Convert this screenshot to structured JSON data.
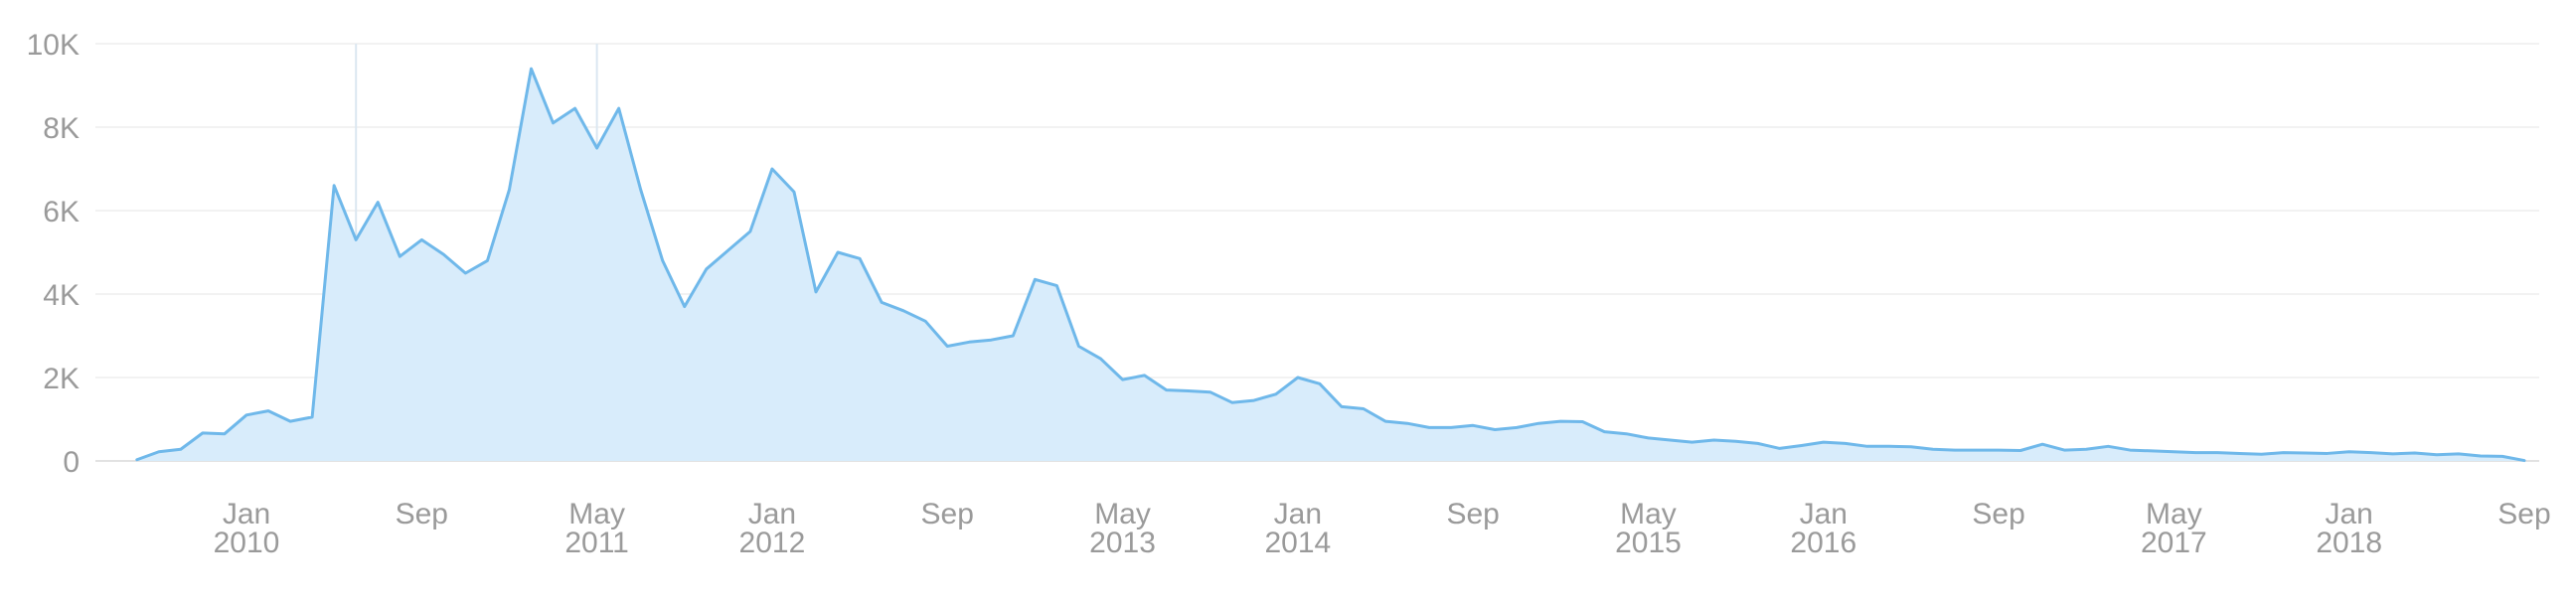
{
  "chart_data": {
    "type": "area",
    "title": "",
    "xlabel": "",
    "ylabel": "",
    "ylim": [
      0,
      10000
    ],
    "grid": true,
    "legend": "none",
    "colors": {
      "line": "#6fb8ea",
      "fill": "#d8ecfb",
      "grid": "#eeeeee",
      "text": "#9a9a9a",
      "reference": "#dbe7f1"
    },
    "y_ticks": [
      {
        "value": 0,
        "label": "0"
      },
      {
        "value": 2000,
        "label": "2K"
      },
      {
        "value": 4000,
        "label": "4K"
      },
      {
        "value": 6000,
        "label": "6K"
      },
      {
        "value": 8000,
        "label": "8K"
      },
      {
        "value": 10000,
        "label": "10K"
      }
    ],
    "x_ticks": [
      {
        "date": "2010-01",
        "label": "Jan",
        "sublabel": "2010"
      },
      {
        "date": "2010-09",
        "label": "Sep",
        "sublabel": ""
      },
      {
        "date": "2011-05",
        "label": "May",
        "sublabel": "2011"
      },
      {
        "date": "2012-01",
        "label": "Jan",
        "sublabel": "2012"
      },
      {
        "date": "2012-09",
        "label": "Sep",
        "sublabel": ""
      },
      {
        "date": "2013-05",
        "label": "May",
        "sublabel": "2013"
      },
      {
        "date": "2014-01",
        "label": "Jan",
        "sublabel": "2014"
      },
      {
        "date": "2014-09",
        "label": "Sep",
        "sublabel": ""
      },
      {
        "date": "2015-05",
        "label": "May",
        "sublabel": "2015"
      },
      {
        "date": "2016-01",
        "label": "Jan",
        "sublabel": "2016"
      },
      {
        "date": "2016-09",
        "label": "Sep",
        "sublabel": ""
      },
      {
        "date": "2017-05",
        "label": "May",
        "sublabel": "2017"
      },
      {
        "date": "2018-01",
        "label": "Jan",
        "sublabel": "2018"
      },
      {
        "date": "2018-09",
        "label": "Sep",
        "sublabel": ""
      }
    ],
    "reference_lines": [
      "2010-06",
      "2011-05"
    ],
    "series": [
      {
        "x": [
          "2009-08",
          "2009-09",
          "2009-10",
          "2009-11",
          "2009-12",
          "2010-01",
          "2010-02",
          "2010-03",
          "2010-04",
          "2010-05",
          "2010-06",
          "2010-07",
          "2010-08",
          "2010-09",
          "2010-10",
          "2010-11",
          "2010-12",
          "2011-01",
          "2011-02",
          "2011-03",
          "2011-04",
          "2011-05",
          "2011-06",
          "2011-07",
          "2011-08",
          "2011-09",
          "2011-10",
          "2011-11",
          "2011-12",
          "2012-01",
          "2012-02",
          "2012-03",
          "2012-04",
          "2012-05",
          "2012-06",
          "2012-07",
          "2012-08",
          "2012-09",
          "2012-10",
          "2012-11",
          "2012-12",
          "2013-01",
          "2013-02",
          "2013-03",
          "2013-04",
          "2013-05",
          "2013-06",
          "2013-07",
          "2013-08",
          "2013-09",
          "2013-10",
          "2013-11",
          "2013-12",
          "2014-01",
          "2014-02",
          "2014-03",
          "2014-04",
          "2014-05",
          "2014-06",
          "2014-07",
          "2014-08",
          "2014-09",
          "2014-10",
          "2014-11",
          "2014-12",
          "2015-01",
          "2015-02",
          "2015-03",
          "2015-04",
          "2015-05",
          "2015-06",
          "2015-07",
          "2015-08",
          "2015-09",
          "2015-10",
          "2015-11",
          "2015-12",
          "2016-01",
          "2016-02",
          "2016-03",
          "2016-04",
          "2016-05",
          "2016-06",
          "2016-07",
          "2016-08",
          "2016-09",
          "2016-10",
          "2016-11",
          "2016-12",
          "2017-01",
          "2017-02",
          "2017-03",
          "2017-04",
          "2017-05",
          "2017-06",
          "2017-07",
          "2017-08",
          "2017-09",
          "2017-10",
          "2017-11",
          "2017-12",
          "2018-01",
          "2018-02",
          "2018-03",
          "2018-04",
          "2018-05",
          "2018-06",
          "2018-07",
          "2018-08",
          "2018-09"
        ],
        "values": [
          30,
          220,
          280,
          670,
          650,
          1100,
          1200,
          950,
          1050,
          6600,
          5300,
          6200,
          4900,
          5300,
          4950,
          4500,
          4800,
          6500,
          9400,
          8100,
          8450,
          7500,
          8450,
          6500,
          4800,
          3700,
          4600,
          5050,
          5500,
          7000,
          6450,
          4050,
          5000,
          4850,
          3800,
          3600,
          3350,
          2750,
          2850,
          2900,
          3000,
          4350,
          4200,
          2750,
          2450,
          1950,
          2050,
          1700,
          1680,
          1650,
          1400,
          1450,
          1600,
          2000,
          1850,
          1300,
          1250,
          950,
          900,
          800,
          800,
          850,
          750,
          800,
          900,
          950,
          940,
          700,
          650,
          550,
          500,
          450,
          500,
          470,
          420,
          300,
          370,
          450,
          420,
          350,
          350,
          340,
          280,
          260,
          260,
          260,
          250,
          400,
          260,
          280,
          350,
          260,
          240,
          220,
          200,
          200,
          180,
          160,
          200,
          190,
          180,
          220,
          200,
          170,
          190,
          150,
          170,
          120,
          110,
          10
        ]
      }
    ]
  }
}
